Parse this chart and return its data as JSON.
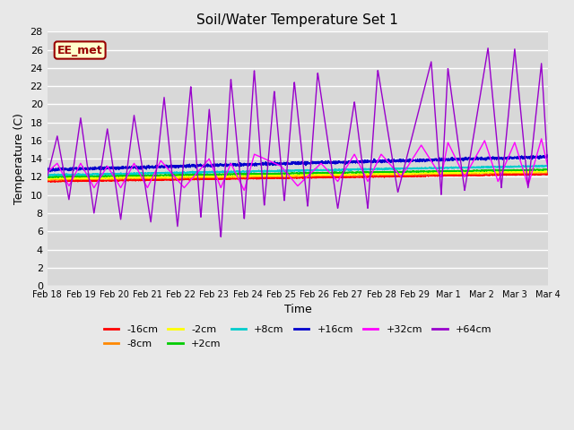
{
  "title": "Soil/Water Temperature Set 1",
  "xlabel": "Time",
  "ylabel": "Temperature (C)",
  "ylim": [
    0,
    28
  ],
  "yticks": [
    0,
    2,
    4,
    6,
    8,
    10,
    12,
    14,
    16,
    18,
    20,
    22,
    24,
    26,
    28
  ],
  "background_color": "#e8e8e8",
  "plot_bg_color": "#d8d8d8",
  "grid_color": "#ffffff",
  "annotation_text": "EE_met",
  "annotation_bg": "#ffffcc",
  "annotation_border": "#990000",
  "series_colors": {
    "-16cm": "#ff0000",
    "-8cm": "#ff8800",
    "-2cm": "#ffff00",
    "+2cm": "#00cc00",
    "+8cm": "#00cccc",
    "+16cm": "#0000cc",
    "+32cm": "#ff00ff",
    "+64cm": "#9900cc"
  },
  "x_tick_labels": [
    "Feb 18",
    "Feb 19",
    "Feb 20",
    "Feb 21",
    "Feb 22",
    "Feb 23",
    "Feb 24",
    "Feb 25",
    "Feb 26",
    "Feb 27",
    "Feb 28",
    "Feb 29",
    "Mar 1",
    "Mar 2",
    "Mar 3",
    "Mar 4"
  ],
  "figsize": [
    6.4,
    4.8
  ],
  "dpi": 100
}
